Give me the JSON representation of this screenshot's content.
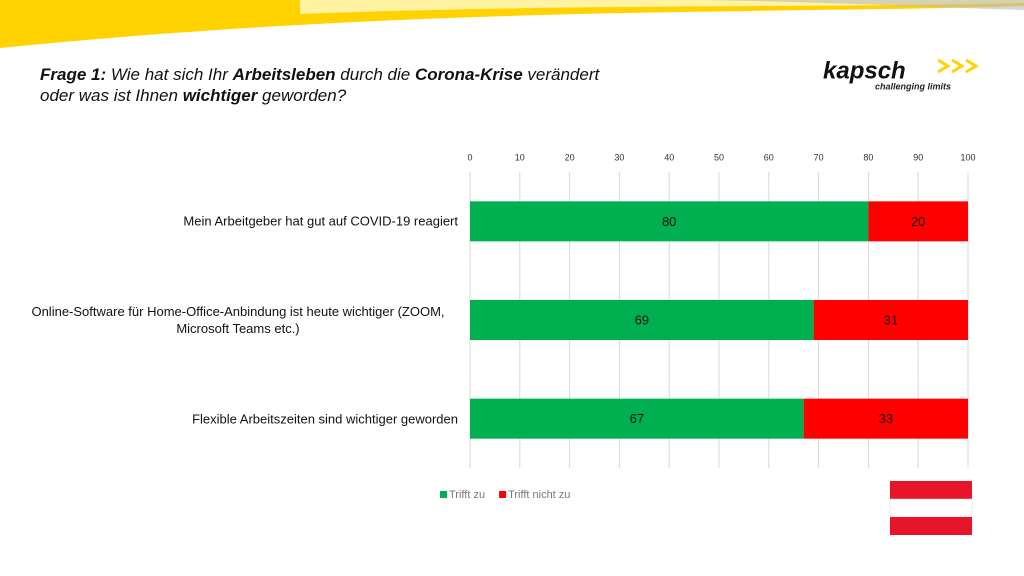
{
  "title": [
    "Frage 1:",
    " Wie hat sich Ihr ",
    "Arbeitsleben",
    " durch die ",
    "Corona-Krise",
    " verändert",
    "oder was ist Ihnen ",
    "wichtiger",
    " geworden?"
  ],
  "logo": {
    "name": "kapsch",
    "tagline": "challenging limits"
  },
  "chart_data": {
    "type": "stacked-barh",
    "categories": [
      "Mein Arbeitgeber hat gut auf COVID-19 reagiert",
      "Online-Software für Home-Office-Anbindung ist heute wichtiger (ZOOM, Microsoft Teams etc.)",
      "Flexible Arbeitszeiten sind wichtiger geworden"
    ],
    "series": [
      {
        "name": "Trifft zu",
        "color": "#00b050",
        "values": [
          80,
          69,
          67
        ]
      },
      {
        "name": "Trifft nicht zu",
        "color": "#ff0000",
        "values": [
          20,
          31,
          33
        ]
      }
    ],
    "xlim": [
      0,
      100
    ],
    "xticks": [
      0,
      10,
      20,
      30,
      40,
      50,
      60,
      70,
      80,
      90,
      100
    ],
    "grid": true,
    "legend": "bottom"
  }
}
